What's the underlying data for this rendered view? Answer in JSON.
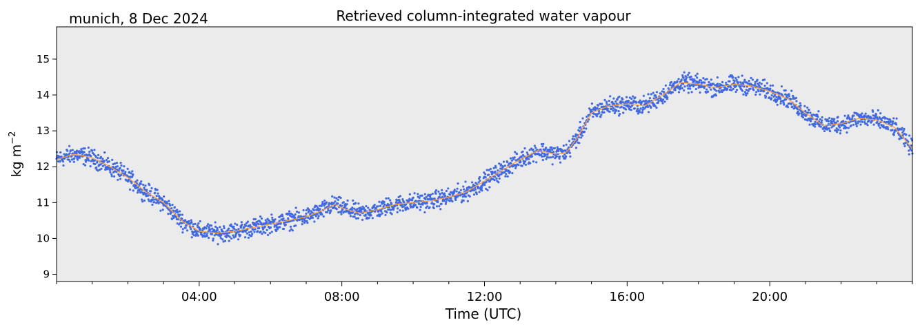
{
  "header": {
    "location_date": "munich, 8 Dec 2024"
  },
  "chart_data": {
    "type": "line",
    "title": "Retrieved column-integrated water vapour",
    "xlabel": "Time (UTC)",
    "ylabel": "kg m",
    "ylabel_superscript": "−2",
    "xlim_hours": [
      0,
      24
    ],
    "ylim": [
      8.8,
      15.9
    ],
    "x_ticks": [
      {
        "hour": 4,
        "label": "04:00"
      },
      {
        "hour": 8,
        "label": "08:00"
      },
      {
        "hour": 12,
        "label": "12:00"
      },
      {
        "hour": 16,
        "label": "16:00"
      },
      {
        "hour": 20,
        "label": "20:00"
      }
    ],
    "y_ticks": [
      9,
      10,
      11,
      12,
      13,
      14,
      15
    ],
    "grid": false,
    "background_color": "#ebebeb",
    "series": [
      {
        "role": "raw retrievals (scatter)",
        "color": "#4169e1",
        "x": [
          0,
          0.5,
          1,
          1.5,
          2,
          2.5,
          3,
          3.5,
          4,
          4.5,
          5,
          5.5,
          6,
          6.5,
          7,
          7.5,
          7.8,
          8,
          8.5,
          9,
          9.5,
          10,
          10.5,
          11,
          11.5,
          12,
          12.5,
          13,
          13.5,
          14,
          14.3,
          14.6,
          15,
          15.5,
          16,
          16.5,
          17,
          17.5,
          18,
          18.5,
          19,
          19.5,
          20,
          20.5,
          21,
          21.5,
          22,
          22.5,
          23,
          23.5,
          24
        ],
        "y": [
          12.2,
          12.35,
          12.25,
          12.0,
          11.7,
          11.3,
          11.0,
          10.5,
          10.2,
          10.15,
          10.2,
          10.3,
          10.4,
          10.5,
          10.6,
          10.8,
          10.95,
          10.85,
          10.7,
          10.8,
          10.95,
          11.0,
          11.05,
          11.15,
          11.3,
          11.6,
          11.9,
          12.2,
          12.45,
          12.35,
          12.4,
          12.8,
          13.5,
          13.7,
          13.75,
          13.7,
          14.0,
          14.35,
          14.3,
          14.2,
          14.3,
          14.25,
          14.1,
          13.9,
          13.5,
          13.15,
          13.2,
          13.35,
          13.3,
          13.1,
          12.5
        ],
        "spread": 0.15
      },
      {
        "role": "smoothed (line)",
        "color": "#ffa040",
        "x": [
          0,
          0.5,
          1,
          1.5,
          2,
          2.5,
          3,
          3.5,
          4,
          4.5,
          5,
          5.5,
          6,
          6.5,
          7,
          7.5,
          7.8,
          8,
          8.5,
          9,
          9.5,
          10,
          10.5,
          11,
          11.5,
          12,
          12.5,
          13,
          13.5,
          14,
          14.3,
          14.6,
          15,
          15.5,
          16,
          16.5,
          17,
          17.5,
          18,
          18.5,
          19,
          19.5,
          20,
          20.5,
          21,
          21.5,
          22,
          22.5,
          23,
          23.5,
          24
        ],
        "y": [
          12.2,
          12.35,
          12.25,
          12.0,
          11.7,
          11.3,
          11.0,
          10.5,
          10.2,
          10.15,
          10.2,
          10.3,
          10.4,
          10.5,
          10.6,
          10.8,
          10.95,
          10.85,
          10.7,
          10.8,
          10.95,
          11.0,
          11.05,
          11.15,
          11.3,
          11.6,
          11.9,
          12.2,
          12.45,
          12.35,
          12.4,
          12.8,
          13.5,
          13.7,
          13.75,
          13.7,
          14.0,
          14.35,
          14.3,
          14.2,
          14.3,
          14.25,
          14.1,
          13.9,
          13.5,
          13.15,
          13.2,
          13.35,
          13.3,
          13.1,
          12.5
        ]
      }
    ]
  }
}
